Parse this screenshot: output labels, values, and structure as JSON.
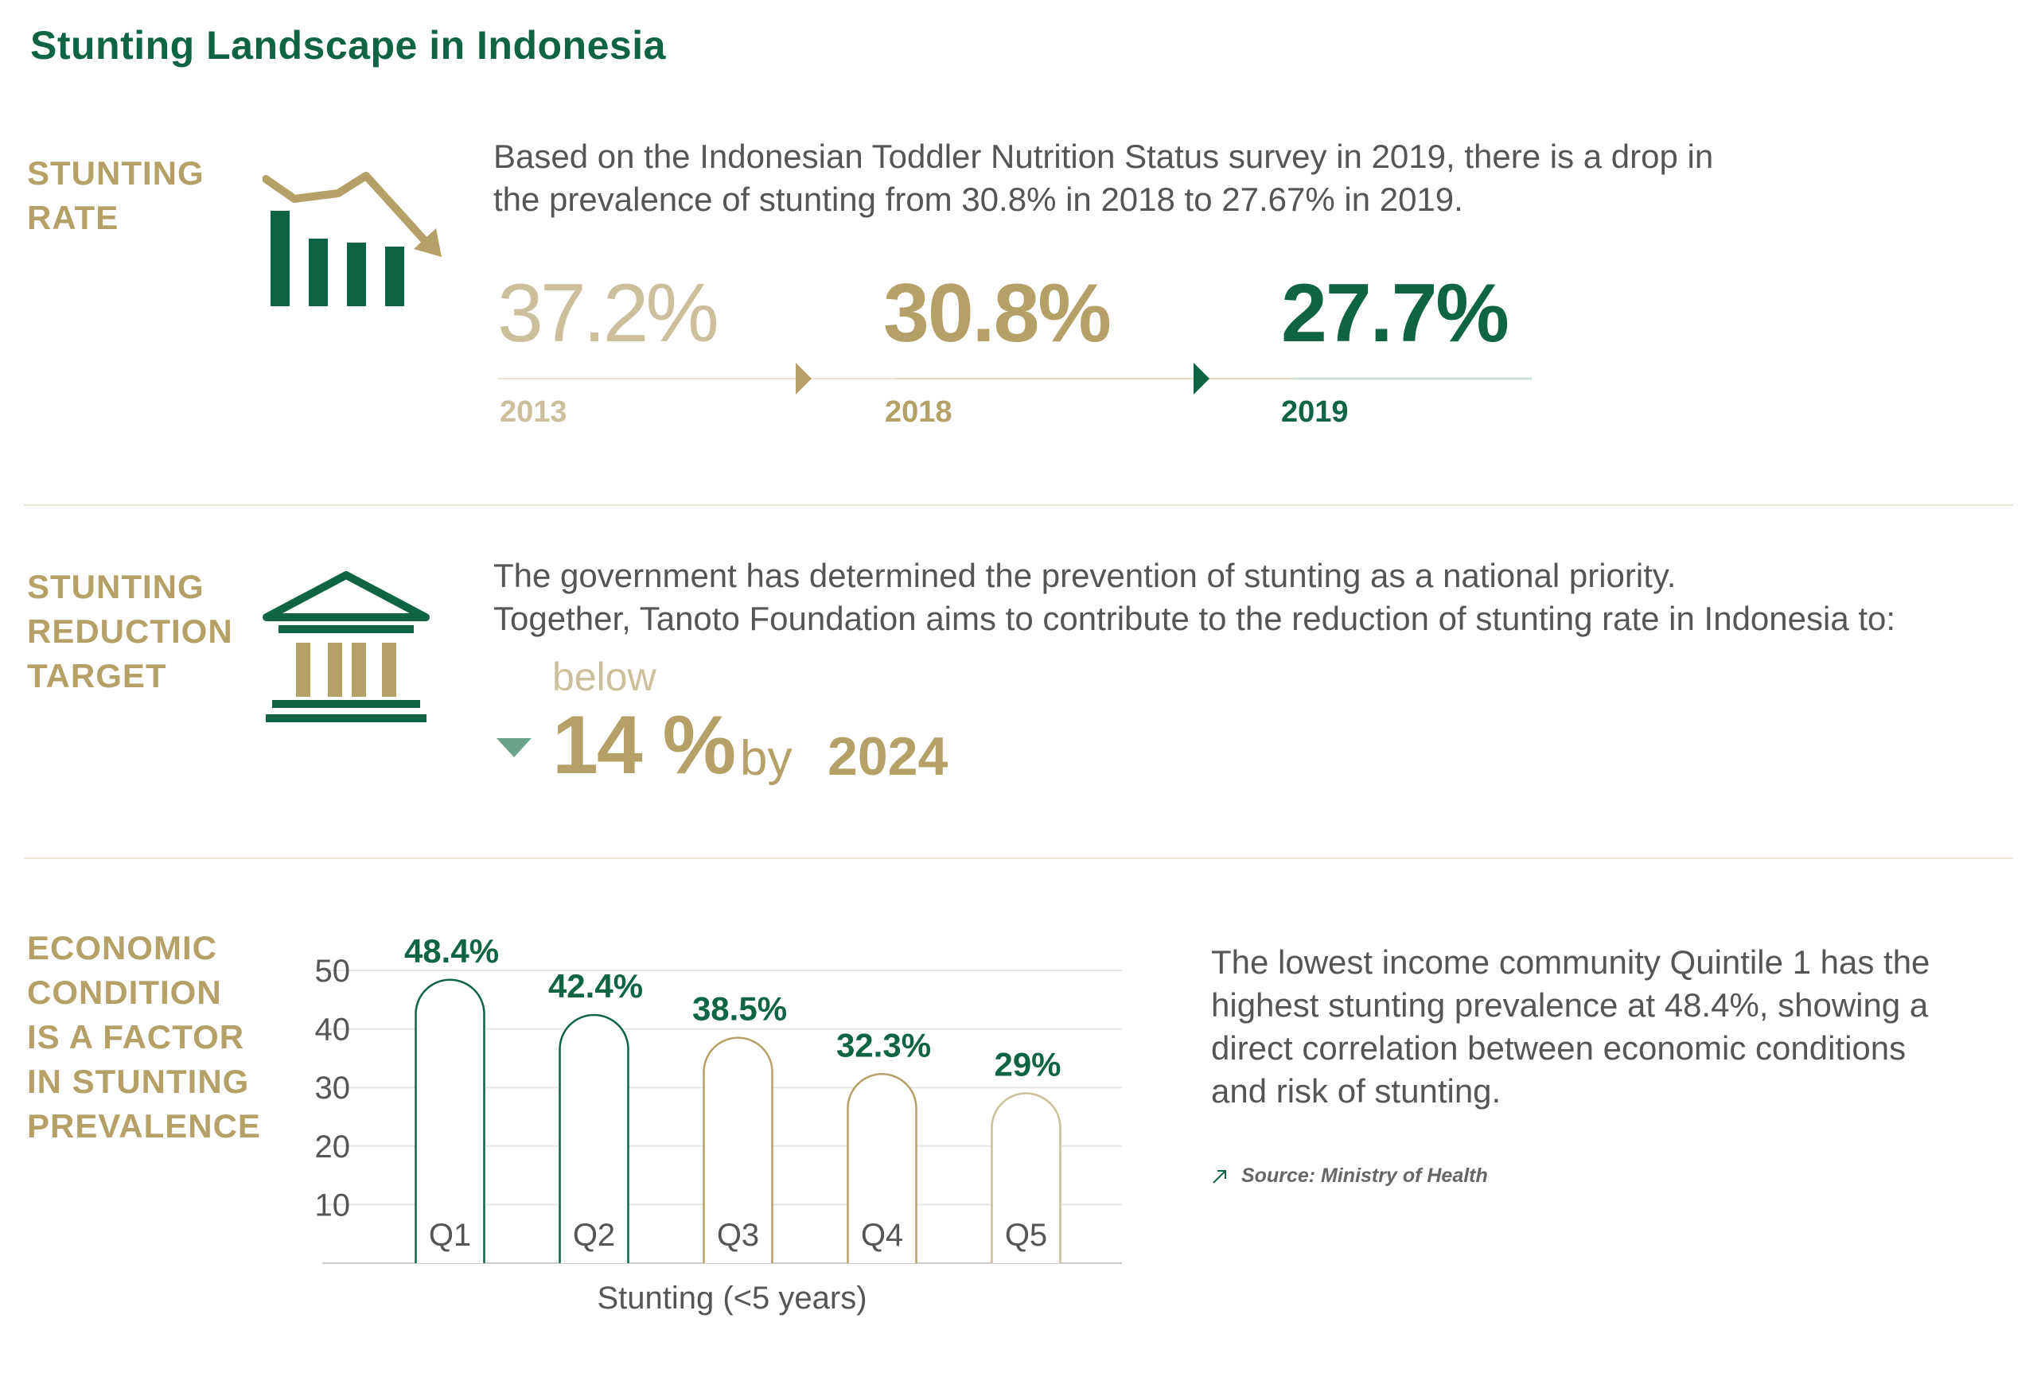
{
  "title": "Stunting Landscape in Indonesia",
  "colors": {
    "green": "#0f6443",
    "gold": "#b5a067",
    "light_gold": "#cbbf9c",
    "text": "#555555"
  },
  "sections": {
    "rate": {
      "label_lines": [
        "STUNTING",
        "RATE"
      ],
      "icon": "declining-bar-chart-icon",
      "text_lines": [
        "Based on the Indonesian Toddler Nutrition Status survey in 2019, there is a drop in",
        "the prevalence of stunting from 30.8% in 2018 to 27.67% in 2019."
      ],
      "timeline": [
        {
          "value": "37.2%",
          "year": "2013"
        },
        {
          "value": "30.8%",
          "year": "2018"
        },
        {
          "value": "27.7%",
          "year": "2019"
        }
      ]
    },
    "target": {
      "label_lines": [
        "STUNTING",
        "REDUCTION",
        "TARGET"
      ],
      "icon": "government-building-icon",
      "text_lines": [
        "The government has determined the prevention of stunting as a national priority.",
        "Together, Tanoto Foundation aims to  contribute to the reduction of stunting rate in Indonesia to:"
      ],
      "below": "below",
      "value": "14 %",
      "by": "by",
      "year": "2024",
      "arrow_icon": "down-triangle-icon"
    },
    "economic": {
      "label_lines": [
        "ECONOMIC",
        "CONDITION",
        "IS A FACTOR",
        "IN STUNTING",
        "PREVALENCE"
      ],
      "text_lines": [
        "The lowest income community Quintile 1 has the",
        "highest stunting prevalence at 48.4%, showing a",
        "direct correlation between economic conditions",
        "and risk of stunting."
      ],
      "source": "Source: Ministry of Health",
      "source_icon": "arrow-up-right-icon"
    }
  },
  "chart_data": {
    "type": "bar",
    "categories": [
      "Q1",
      "Q2",
      "Q3",
      "Q4",
      "Q5"
    ],
    "values": [
      48.4,
      42.4,
      38.5,
      32.3,
      29
    ],
    "data_labels": [
      "48.4%",
      "42.4%",
      "38.5%",
      "32.3%",
      "29%"
    ],
    "yticks": [
      "10",
      "20",
      "30",
      "40",
      "50"
    ],
    "ylim": [
      0,
      50
    ],
    "xlabel": "Stunting (<5 years)",
    "ylabel": "",
    "grid": true,
    "bar_stroke_colors": [
      "#0f6443",
      "#0f6443",
      "#b5a067",
      "#b5a067",
      "#cbbf9c"
    ]
  }
}
